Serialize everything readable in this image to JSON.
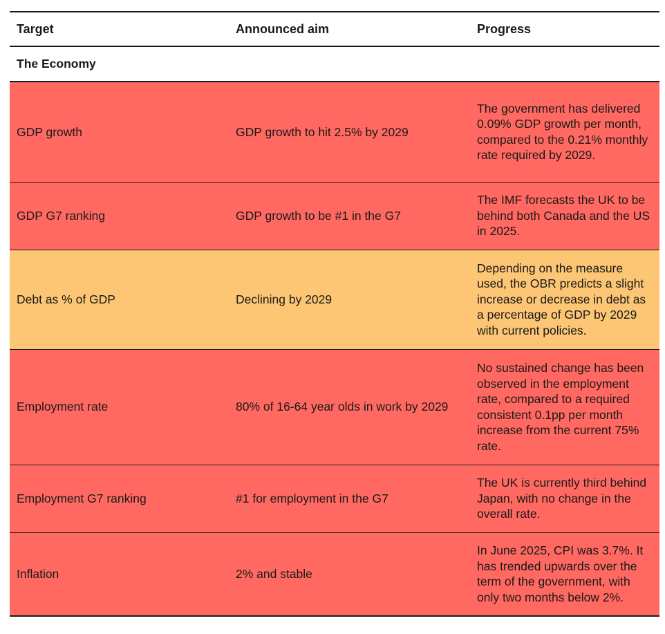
{
  "colors": {
    "red": "#ff6961",
    "amber": "#fdc674",
    "rule": "#1a1a1a"
  },
  "table": {
    "headers": {
      "target": "Target",
      "aim": "Announced aim",
      "progress": "Progress"
    },
    "section": "The Economy",
    "rows": [
      {
        "status": "red",
        "target": "GDP growth",
        "aim": "GDP growth to hit 2.5% by 2029",
        "progress": "The government has delivered 0.09% GDP growth per month, compared to the 0.21% monthly rate required by 2029."
      },
      {
        "status": "red",
        "target": "GDP G7 ranking",
        "aim": "GDP growth to be #1 in the G7",
        "progress": "The IMF forecasts the UK to be behind both Canada and the US in 2025."
      },
      {
        "status": "amber",
        "target": "Debt as % of GDP",
        "aim": "Declining by 2029",
        "progress": "Depending on the measure used, the OBR predicts a slight increase or decrease in debt as a percentage of GDP by 2029 with current policies."
      },
      {
        "status": "red",
        "target": "Employment rate",
        "aim": "80% of 16-64 year olds in work by 2029",
        "progress": "No sustained change has been observed in the employment rate, compared to a required consistent 0.1pp per month increase from the current 75% rate."
      },
      {
        "status": "red",
        "target": "Employment G7 ranking",
        "aim": "#1 for employment in the G7",
        "progress": "The UK is currently third behind Japan, with no change in the overall rate."
      },
      {
        "status": "red",
        "target": "Inflation",
        "aim": "2% and stable",
        "progress": "In June 2025, CPI was 3.7%. It has trended upwards over the term of the government, with only two months below 2%."
      }
    ]
  }
}
